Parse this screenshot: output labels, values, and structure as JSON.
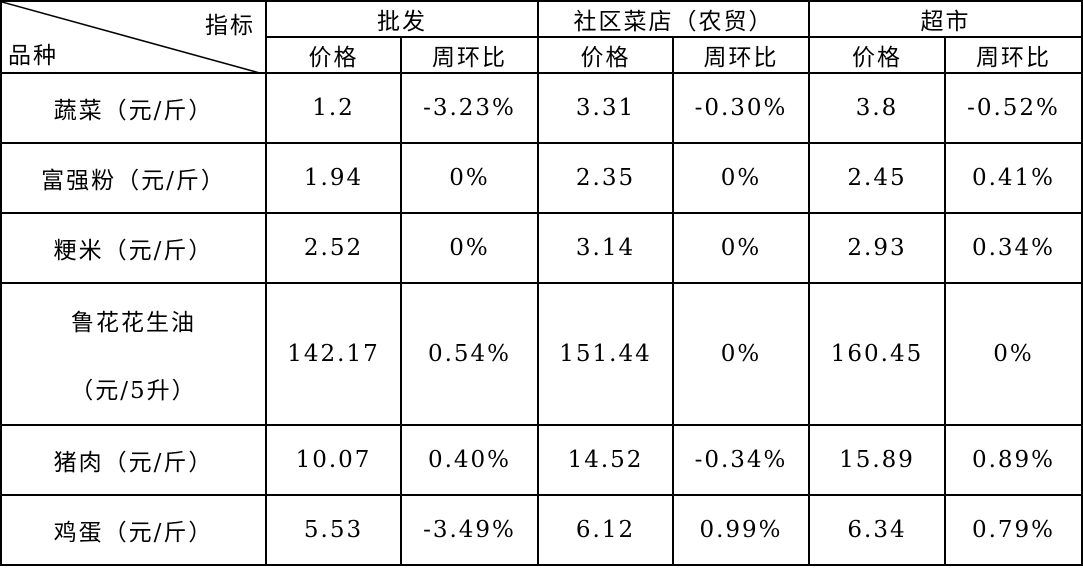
{
  "table": {
    "corner": {
      "top": "指标",
      "bottom": "品种"
    },
    "groups": [
      "批发",
      "社区菜店（农贸）",
      "超市"
    ],
    "subheaders": [
      "价格",
      "周环比",
      "价格",
      "周环比",
      "价格",
      "周环比"
    ],
    "rows": [
      {
        "item": "蔬菜",
        "unit": "（元/斤）",
        "cells": [
          "1.2",
          "-3.23%",
          "3.31",
          "-0.30%",
          "3.8",
          "-0.52%"
        ]
      },
      {
        "item": "富强粉",
        "unit": "（元/斤）",
        "cells": [
          "1.94",
          "0%",
          "2.35",
          "0%",
          "2.45",
          "0.41%"
        ]
      },
      {
        "item": "粳米",
        "unit": "（元/斤）",
        "cells": [
          "2.52",
          "0%",
          "3.14",
          "0%",
          "2.93",
          "0.34%"
        ]
      },
      {
        "item": "鲁花花生油",
        "unit": "（元/5升）",
        "cells": [
          "142.17",
          "0.54%",
          "151.44",
          "0%",
          "160.45",
          "0%"
        ]
      },
      {
        "item": "猪肉",
        "unit": "（元/斤）",
        "cells": [
          "10.07",
          "0.40%",
          "14.52",
          "-0.34%",
          "15.89",
          "0.89%"
        ]
      },
      {
        "item": "鸡蛋",
        "unit": "（元/斤）",
        "cells": [
          "5.53",
          "-3.49%",
          "6.12",
          "0.99%",
          "6.34",
          "0.79%"
        ]
      }
    ]
  }
}
